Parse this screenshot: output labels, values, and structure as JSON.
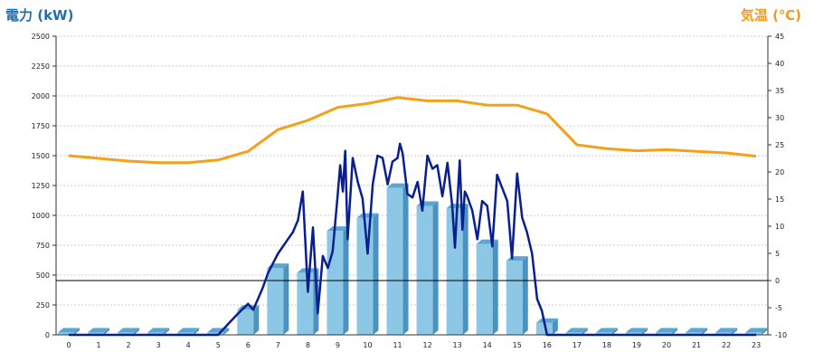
{
  "chart_data": {
    "type": "bar+line",
    "left_axis_label": "電力 (kW)",
    "right_axis_label": "気温 (℃)",
    "x_categories": [
      "0",
      "1",
      "2",
      "3",
      "4",
      "5",
      "6",
      "7",
      "8",
      "9",
      "10",
      "11",
      "12",
      "13",
      "14",
      "15",
      "16",
      "17",
      "18",
      "19",
      "20",
      "21",
      "22",
      "23"
    ],
    "left_ylim": [
      0,
      2500
    ],
    "left_yticks": [
      0,
      250,
      500,
      750,
      1000,
      1250,
      1500,
      1750,
      2000,
      2250,
      2500
    ],
    "right_ylim": [
      -10,
      45
    ],
    "right_yticks": [
      -10,
      -5,
      0,
      5,
      10,
      15,
      20,
      25,
      30,
      35,
      40,
      45
    ],
    "grid": true,
    "colors": {
      "bar_front": "#8cc8e6",
      "bar_side": "#4a93c0",
      "bar_top": "#5ba6d2",
      "power_line": "#0a1f8f",
      "temp_line": "#f5a018",
      "zero_line": "#000000",
      "left_title": "#1f6fb8",
      "right_title": "#f39a1d"
    },
    "bars_kw": [
      20,
      20,
      20,
      20,
      20,
      20,
      210,
      560,
      520,
      870,
      980,
      1230,
      1080,
      1060,
      760,
      620,
      100,
      20,
      20,
      20,
      20,
      20,
      20,
      20
    ],
    "temperature_c": [
      23.0,
      22.5,
      22.0,
      21.7,
      21.7,
      22.2,
      23.8,
      27.8,
      29.5,
      31.9,
      32.6,
      33.7,
      33.1,
      33.1,
      32.3,
      32.3,
      30.7,
      25.0,
      24.3,
      23.9,
      24.1,
      23.8,
      23.5,
      22.9
    ],
    "power_kw_5min": {
      "x": [
        0,
        5,
        5.33,
        5.67,
        6,
        6.17,
        6.33,
        6.5,
        6.67,
        7,
        7.33,
        7.5,
        7.67,
        7.83,
        8,
        8.17,
        8.33,
        8.5,
        8.67,
        8.83,
        9,
        9.08,
        9.17,
        9.25,
        9.33,
        9.5,
        9.67,
        9.83,
        10,
        10.17,
        10.33,
        10.5,
        10.67,
        10.83,
        11,
        11.08,
        11.17,
        11.33,
        11.5,
        11.67,
        11.83,
        12,
        12.17,
        12.33,
        12.5,
        12.67,
        12.83,
        12.92,
        13,
        13.08,
        13.17,
        13.25,
        13.33,
        13.5,
        13.67,
        13.83,
        14,
        14.17,
        14.33,
        14.5,
        14.67,
        14.83,
        15,
        15.17,
        15.33,
        15.5,
        15.67,
        15.83,
        16,
        23
      ],
      "y": [
        0,
        0,
        90,
        180,
        260,
        210,
        300,
        400,
        520,
        680,
        800,
        860,
        960,
        1200,
        360,
        900,
        180,
        660,
        560,
        700,
        1180,
        1420,
        1200,
        1540,
        800,
        1480,
        1280,
        1140,
        680,
        1260,
        1500,
        1480,
        1260,
        1450,
        1480,
        1600,
        1520,
        1180,
        1150,
        1280,
        1040,
        1500,
        1390,
        1420,
        1160,
        1440,
        1080,
        730,
        1100,
        1460,
        880,
        1200,
        1160,
        1040,
        800,
        1120,
        1080,
        740,
        1340,
        1230,
        1120,
        640,
        1350,
        980,
        860,
        680,
        300,
        200,
        0,
        0
      ]
    }
  }
}
